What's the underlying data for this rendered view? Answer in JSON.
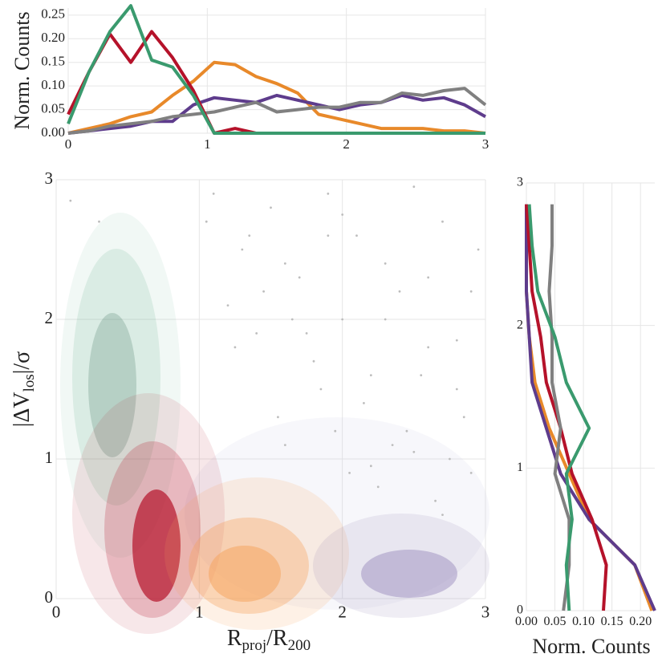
{
  "chart_data": [
    {
      "type": "line",
      "x": [
        0,
        0.15,
        0.3,
        0.45,
        0.6,
        0.75,
        0.9,
        1.05,
        1.2,
        1.35,
        1.5,
        1.65,
        1.8,
        1.95,
        2.1,
        2.25,
        2.4,
        2.55,
        2.7,
        2.85,
        3.0
      ],
      "series": [
        {
          "color": "#e8892a",
          "values": [
            0,
            0.01,
            0.02,
            0.035,
            0.045,
            0.08,
            0.11,
            0.15,
            0.145,
            0.12,
            0.105,
            0.085,
            0.04,
            0.03,
            0.02,
            0.01,
            0.01,
            0.01,
            0.005,
            0.005,
            0
          ]
        },
        {
          "color": "#5e3c8c",
          "values": [
            0,
            0.005,
            0.01,
            0.015,
            0.025,
            0.025,
            0.06,
            0.075,
            0.07,
            0.065,
            0.08,
            0.07,
            0.06,
            0.05,
            0.06,
            0.065,
            0.08,
            0.07,
            0.075,
            0.06,
            0.035
          ]
        },
        {
          "color": "#808080",
          "values": [
            0,
            0.005,
            0.015,
            0.02,
            0.025,
            0.035,
            0.04,
            0.045,
            0.055,
            0.065,
            0.045,
            0.05,
            0.055,
            0.055,
            0.065,
            0.065,
            0.085,
            0.08,
            0.09,
            0.095,
            0.06
          ]
        },
        {
          "color": "#b5122a",
          "values": [
            0.04,
            0.13,
            0.21,
            0.15,
            0.215,
            0.16,
            0.09,
            0,
            0.01,
            0,
            0,
            0,
            0,
            0,
            0,
            0,
            0,
            0,
            0,
            0,
            0
          ]
        },
        {
          "color": "#3a9a6e",
          "values": [
            0.02,
            0.13,
            0.215,
            0.27,
            0.155,
            0.14,
            0.08,
            0,
            0,
            0,
            0,
            0,
            0,
            0,
            0,
            0,
            0,
            0,
            0,
            0,
            0
          ]
        }
      ],
      "xlim": [
        0,
        3
      ],
      "xticks": [
        0,
        1,
        2,
        3
      ],
      "ylim": [
        0,
        0.265
      ],
      "yticks": [
        {
          "value": 0,
          "label": "0.00"
        },
        0.05,
        {
          "value": 0.1,
          "label": "0.10"
        },
        0.15,
        {
          "value": 0.2,
          "label": "0.20"
        },
        0.25
      ],
      "ylabel": "Norm. Counts",
      "grid": true
    },
    {
      "type": "scatter",
      "color": "#bdbdbd",
      "x": [
        1.1,
        1.3,
        1.5,
        1.7,
        1.9,
        2.1,
        2.3,
        2.5,
        2.7,
        2.9,
        1.2,
        1.4,
        1.6,
        1.8,
        2.0,
        2.2,
        2.4,
        2.6,
        2.8,
        2.95,
        1.05,
        1.35,
        1.55,
        1.75,
        1.95,
        2.15,
        2.35,
        2.55,
        2.75,
        2.85,
        1.25,
        1.45,
        1.65,
        1.85,
        2.05,
        2.25,
        2.45,
        2.65,
        2.9,
        0.1,
        0.3,
        2.0,
        2.3,
        2.6,
        2.8,
        1.6,
        2.2,
        2.5,
        2.7,
        1.9
      ],
      "y": [
        2.9,
        2.5,
        2.8,
        2.3,
        2.9,
        2.6,
        2.4,
        2.95,
        2.7,
        2.2,
        2.1,
        1.9,
        2.4,
        1.7,
        2.0,
        1.6,
        2.2,
        1.8,
        1.5,
        2.5,
        2.7,
        2.6,
        1.3,
        1.9,
        1.2,
        1.4,
        1.1,
        1.6,
        1.0,
        1.3,
        1.8,
        2.2,
        2.0,
        1.5,
        0.9,
        0.8,
        1.2,
        0.7,
        0.9,
        2.85,
        2.7,
        2.75,
        2.0,
        2.3,
        1.85,
        1.1,
        0.95,
        1.05,
        0.6,
        2.6
      ],
      "xlim": [
        0,
        3
      ],
      "xticks": [
        0,
        1,
        2,
        3
      ],
      "ylim": [
        0,
        3
      ],
      "yticks": [
        0,
        1,
        2,
        3
      ],
      "xlabel": {
        "main": "R",
        "sub": "proj",
        "mid": "/R",
        "sub2": "200"
      },
      "ylabel": {
        "main": "|ΔV",
        "sub": "los",
        "tail": "|/σ"
      },
      "grid": true
    },
    {
      "type": "line",
      "y": [
        0,
        0.32,
        0.64,
        0.96,
        1.28,
        1.6,
        1.92,
        2.24,
        2.56,
        2.85
      ],
      "series": [
        {
          "color": "#e8892a",
          "values": [
            0.22,
            0.19,
            0.11,
            0.075,
            0.04,
            0.015,
            0.005,
            0,
            0,
            0
          ]
        },
        {
          "color": "#5e3c8c",
          "values": [
            0.225,
            0.19,
            0.11,
            0.06,
            0.035,
            0.01,
            0.005,
            0,
            0,
            0
          ]
        },
        {
          "color": "#b5122a",
          "values": [
            0.135,
            0.14,
            0.115,
            0.08,
            0.06,
            0.035,
            0.025,
            0.01,
            0.005,
            0
          ]
        },
        {
          "color": "#808080",
          "values": [
            0.065,
            0.075,
            0.075,
            0.05,
            0.06,
            0.045,
            0.045,
            0.04,
            0.045,
            0.045
          ]
        },
        {
          "color": "#3a9a6e",
          "values": [
            0.075,
            0.07,
            0.08,
            0.07,
            0.11,
            0.07,
            0.05,
            0.02,
            0.01,
            0.005
          ]
        }
      ],
      "xlim": [
        0,
        0.225
      ],
      "xticks": [
        {
          "value": 0,
          "label": "0.00"
        },
        0.05,
        {
          "value": 0.1,
          "label": "0.10"
        },
        0.15,
        {
          "value": 0.2,
          "label": "0.20"
        }
      ],
      "ylim": [
        0,
        3
      ],
      "yticks": [
        0,
        1,
        2,
        3
      ],
      "xlabel": "Norm. Counts",
      "grid": true
    }
  ]
}
